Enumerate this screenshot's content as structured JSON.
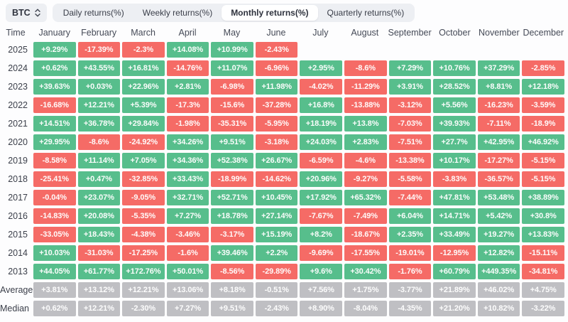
{
  "toolbar": {
    "symbol": "BTC",
    "symbol_icon": "updown-chevron",
    "tabs": [
      {
        "label": "Daily returns(%)",
        "active": false
      },
      {
        "label": "Weekly returns(%)",
        "active": false
      },
      {
        "label": "Monthly returns(%)",
        "active": true
      },
      {
        "label": "Quarterly returns(%)",
        "active": false
      }
    ]
  },
  "table": {
    "time_header": "Time",
    "months": [
      "January",
      "February",
      "March",
      "April",
      "May",
      "June",
      "July",
      "August",
      "September",
      "October",
      "November",
      "December"
    ],
    "rows": [
      {
        "label": "2025",
        "type": "year",
        "values": [
          "+9.29%",
          "-17.39%",
          "-2.3%",
          "+14.08%",
          "+10.99%",
          "-2.43%",
          "",
          "",
          "",
          "",
          "",
          ""
        ]
      },
      {
        "label": "2024",
        "type": "year",
        "values": [
          "+0.62%",
          "+43.55%",
          "+16.81%",
          "-14.76%",
          "+11.07%",
          "-6.96%",
          "+2.95%",
          "-8.6%",
          "+7.29%",
          "+10.76%",
          "+37.29%",
          "-2.85%"
        ]
      },
      {
        "label": "2023",
        "type": "year",
        "values": [
          "+39.63%",
          "+0.03%",
          "+22.96%",
          "+2.81%",
          "-6.98%",
          "+11.98%",
          "-4.02%",
          "-11.29%",
          "+3.91%",
          "+28.52%",
          "+8.81%",
          "+12.18%"
        ]
      },
      {
        "label": "2022",
        "type": "year",
        "values": [
          "-16.68%",
          "+12.21%",
          "+5.39%",
          "-17.3%",
          "-15.6%",
          "-37.28%",
          "+16.8%",
          "-13.88%",
          "-3.12%",
          "+5.56%",
          "-16.23%",
          "-3.59%"
        ]
      },
      {
        "label": "2021",
        "type": "year",
        "values": [
          "+14.51%",
          "+36.78%",
          "+29.84%",
          "-1.98%",
          "-35.31%",
          "-5.95%",
          "+18.19%",
          "+13.8%",
          "-7.03%",
          "+39.93%",
          "-7.11%",
          "-18.9%"
        ]
      },
      {
        "label": "2020",
        "type": "year",
        "values": [
          "+29.95%",
          "-8.6%",
          "-24.92%",
          "+34.26%",
          "+9.51%",
          "-3.18%",
          "+24.03%",
          "+2.83%",
          "-7.51%",
          "+27.7%",
          "+42.95%",
          "+46.92%"
        ]
      },
      {
        "label": "2019",
        "type": "year",
        "values": [
          "-8.58%",
          "+11.14%",
          "+7.05%",
          "+34.36%",
          "+52.38%",
          "+26.67%",
          "-6.59%",
          "-4.6%",
          "-13.38%",
          "+10.17%",
          "-17.27%",
          "-5.15%"
        ]
      },
      {
        "label": "2018",
        "type": "year",
        "values": [
          "-25.41%",
          "+0.47%",
          "-32.85%",
          "+33.43%",
          "-18.99%",
          "-14.62%",
          "+20.96%",
          "-9.27%",
          "-5.58%",
          "-3.83%",
          "-36.57%",
          "-5.15%"
        ]
      },
      {
        "label": "2017",
        "type": "year",
        "values": [
          "-0.04%",
          "+23.07%",
          "-9.05%",
          "+32.71%",
          "+52.71%",
          "+10.45%",
          "+17.92%",
          "+65.32%",
          "-7.44%",
          "+47.81%",
          "+53.48%",
          "+38.89%"
        ]
      },
      {
        "label": "2016",
        "type": "year",
        "values": [
          "-14.83%",
          "+20.08%",
          "-5.35%",
          "+7.27%",
          "+18.78%",
          "+27.14%",
          "-7.67%",
          "-7.49%",
          "+6.04%",
          "+14.71%",
          "+5.42%",
          "+30.8%"
        ]
      },
      {
        "label": "2015",
        "type": "year",
        "values": [
          "-33.05%",
          "+18.43%",
          "-4.38%",
          "-3.46%",
          "-3.17%",
          "+15.19%",
          "+8.2%",
          "-18.67%",
          "+2.35%",
          "+33.49%",
          "+19.27%",
          "+13.83%"
        ]
      },
      {
        "label": "2014",
        "type": "year",
        "values": [
          "+10.03%",
          "-31.03%",
          "-17.25%",
          "-1.6%",
          "+39.46%",
          "+2.2%",
          "-9.69%",
          "-17.55%",
          "-19.01%",
          "-12.95%",
          "+12.82%",
          "-15.11%"
        ]
      },
      {
        "label": "2013",
        "type": "year",
        "values": [
          "+44.05%",
          "+61.77%",
          "+172.76%",
          "+50.01%",
          "-8.56%",
          "-29.89%",
          "+9.6%",
          "+30.42%",
          "-1.76%",
          "+60.79%",
          "+449.35%",
          "-34.81%"
        ]
      },
      {
        "label": "Average",
        "type": "summary",
        "values": [
          "+3.81%",
          "+13.12%",
          "+12.21%",
          "+13.06%",
          "+8.18%",
          "-0.51%",
          "+7.56%",
          "+1.75%",
          "-3.77%",
          "+21.89%",
          "+46.02%",
          "+4.75%"
        ]
      },
      {
        "label": "Median",
        "type": "summary",
        "values": [
          "+0.62%",
          "+12.21%",
          "-2.30%",
          "+7.27%",
          "+9.51%",
          "-2.43%",
          "+8.90%",
          "-8.04%",
          "-4.35%",
          "+21.20%",
          "+10.82%",
          "-3.22%"
        ]
      }
    ]
  },
  "colors": {
    "positive": "#57be8c",
    "negative": "#f56b66",
    "summary": "#bfbfc3",
    "chip_background": "#edeff3",
    "active_tab_background": "#ffffff",
    "cell_text": "#ffffff"
  }
}
